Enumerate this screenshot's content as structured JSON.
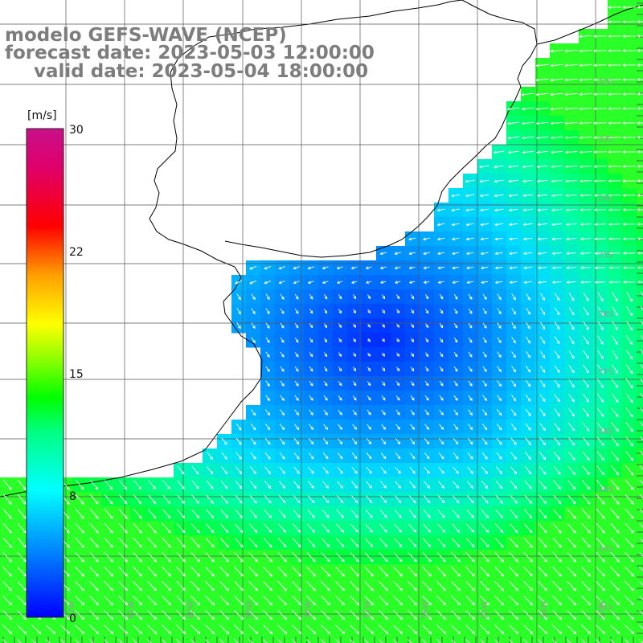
{
  "title": {
    "line1": "modelo GEFS-WAVE (NCEP)",
    "line2": "forecast date: 2023-05-03 12:00:00",
    "line3": "valid date: 2023-05-04 18:00:00"
  },
  "colorbar": {
    "unit": "[m/s]",
    "ticks": [
      "30",
      "22",
      "15",
      "8",
      "0"
    ],
    "colors": [
      "#0000ff",
      "#0080ff",
      "#00ccff",
      "#00ffff",
      "#00ff80",
      "#00ff00",
      "#80ff00",
      "#ffff00",
      "#ffcc00",
      "#ff8000",
      "#ff4000",
      "#ff0000",
      "#e0006a",
      "#c8108a"
    ]
  },
  "map": {
    "lat_labels": [
      "32S",
      "33S",
      "34S",
      "35S",
      "36S",
      "37S",
      "38S",
      "39S",
      "40S",
      "41S"
    ],
    "lon_labels": [
      "62W",
      "61W",
      "60W",
      "59W",
      "58W",
      "57W",
      "56W",
      "55W",
      "54W",
      "53W"
    ],
    "land_color": "#ffffff",
    "grid_color": "#555555",
    "arrow_color": "#ffffff"
  }
}
